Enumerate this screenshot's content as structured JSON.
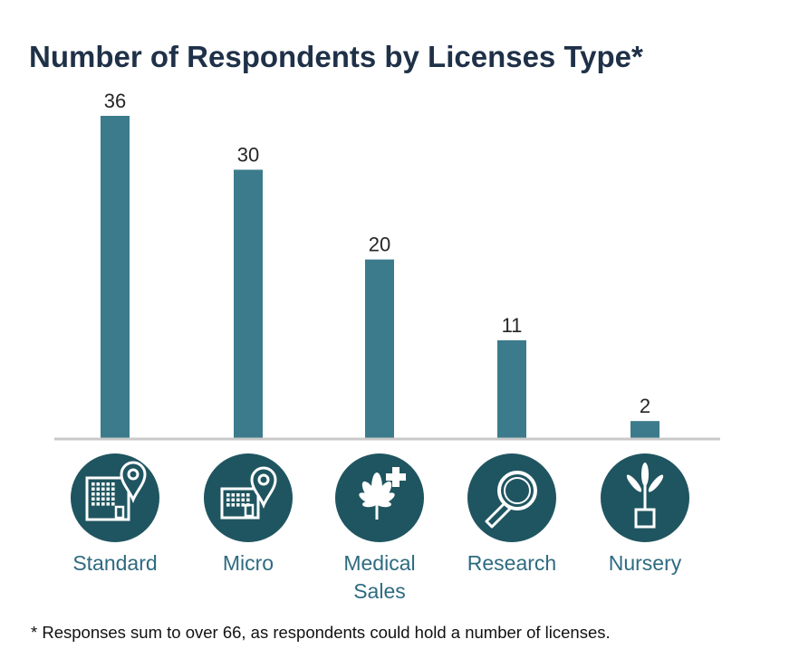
{
  "chart_data": {
    "type": "bar",
    "title": "Number of Respondents by Licenses Type*",
    "categories": [
      "Standard",
      "Micro",
      "Medical Sales",
      "Research",
      "Nursery"
    ],
    "category_lines": [
      [
        "Standard"
      ],
      [
        "Micro"
      ],
      [
        "Medical",
        "Sales"
      ],
      [
        "Research"
      ],
      [
        "Nursery"
      ]
    ],
    "values": [
      36,
      30,
      20,
      11,
      2
    ],
    "icons": [
      "building-pin-icon",
      "small-building-pin-icon",
      "cannabis-leaf-medical-cross-icon",
      "magnifying-glass-icon",
      "potted-plant-icon"
    ],
    "xlabel": "",
    "ylabel": "",
    "ylim": [
      0,
      36
    ],
    "grid": false,
    "legend": "none"
  },
  "footnote": "* Responses sum to over 66, as respondents could hold a number of licenses.",
  "colors": {
    "bar": "#3c7b8c",
    "icon_circle": "#1f5560",
    "title": "#1f3148",
    "category_text": "#2e6b80",
    "baseline": "#c9c9c9"
  }
}
